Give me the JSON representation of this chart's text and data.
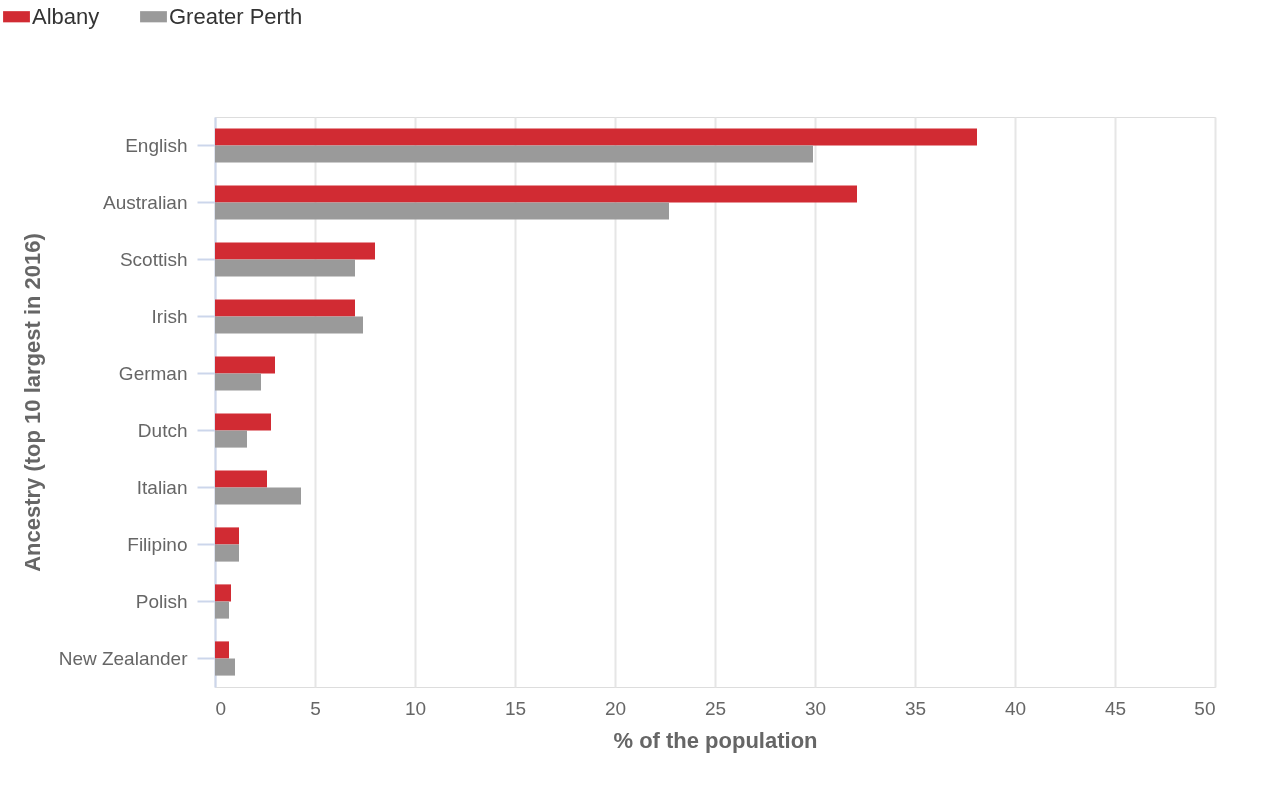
{
  "chart_data": {
    "type": "bar",
    "orientation": "horizontal",
    "xlabel": "% of the population",
    "ylabel": "Ancestry (top 10 largest in 2016)",
    "categories": [
      "English",
      "Australian",
      "Scottish",
      "Irish",
      "German",
      "Dutch",
      "Italian",
      "Filipino",
      "Polish",
      "New Zealander"
    ],
    "series": [
      {
        "name": "Albany",
        "color": "#d12b33",
        "values": [
          38.1,
          32.1,
          8.0,
          7.0,
          3.0,
          2.8,
          2.6,
          1.2,
          0.8,
          0.7
        ]
      },
      {
        "name": "Greater Perth",
        "color": "#9a9a9a",
        "values": [
          29.9,
          22.7,
          7.0,
          7.4,
          2.3,
          1.6,
          4.3,
          1.2,
          0.7,
          1.0
        ]
      }
    ],
    "xlim": [
      0,
      50
    ],
    "xticks": [
      0,
      5,
      10,
      15,
      20,
      25,
      30,
      35,
      40,
      45,
      50
    ],
    "grid": "x",
    "legend": "top left"
  }
}
